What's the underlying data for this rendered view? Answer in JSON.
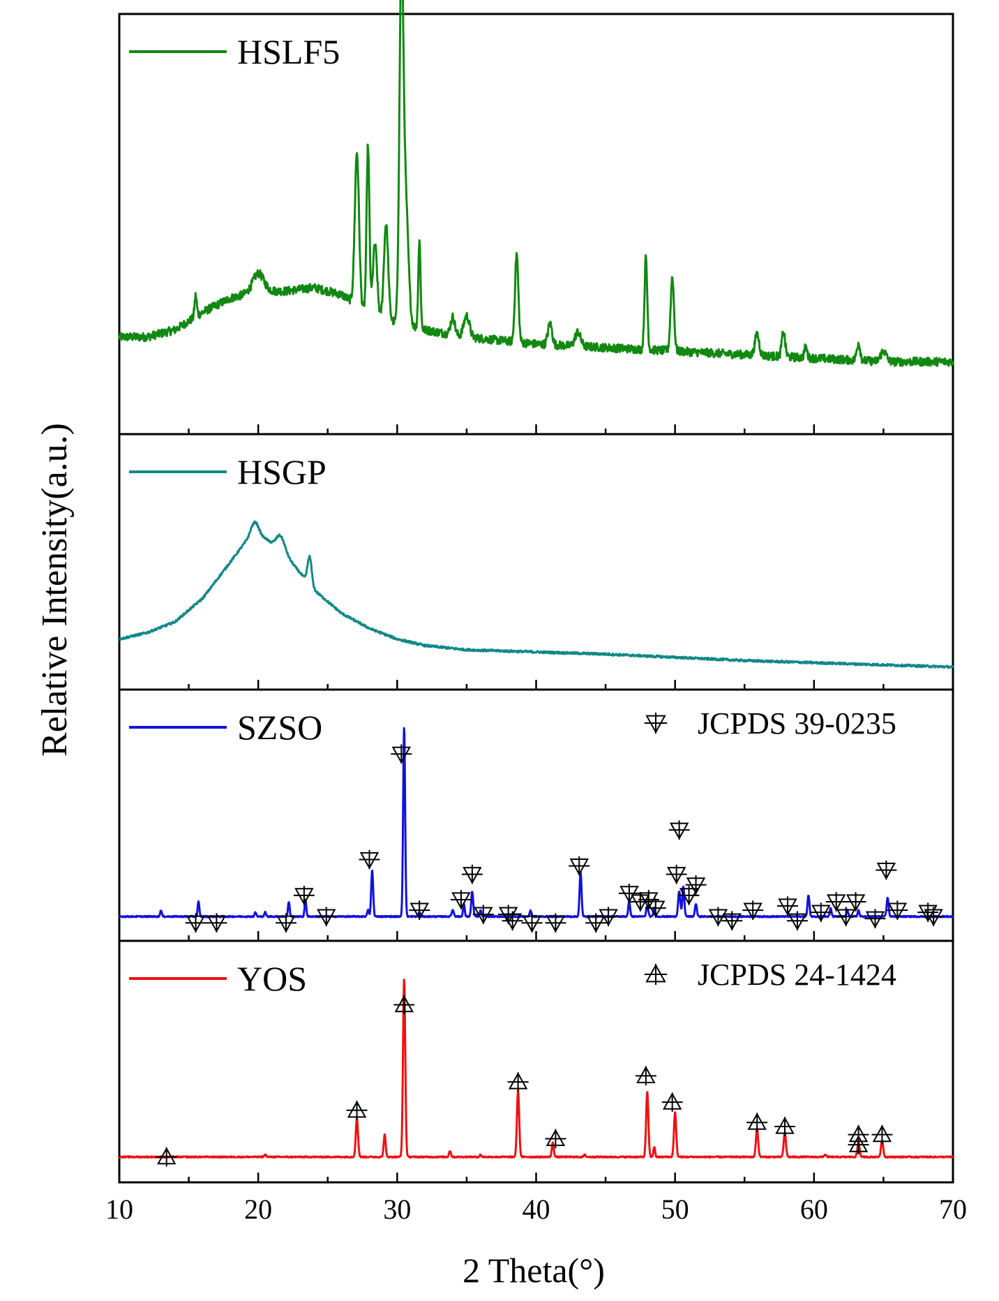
{
  "chart_data": {
    "type": "line",
    "title": "",
    "xlabel": "2 Theta(°)",
    "ylabel": "Relative Intensity(a.u.)",
    "xlim": [
      10,
      70
    ],
    "xticks": [
      10,
      20,
      30,
      40,
      50,
      60,
      70
    ],
    "xtick_labels": [
      "10",
      "20",
      "30",
      "40",
      "50",
      "60",
      "70"
    ],
    "grid": false,
    "panels": [
      {
        "name": "HSLF5",
        "color": "#118811",
        "legend": "HSLF5",
        "ylim": [
          0,
          1
        ],
        "baseline": [
          [
            10,
            0.18
          ],
          [
            12,
            0.18
          ],
          [
            14,
            0.2
          ],
          [
            16,
            0.25
          ],
          [
            18,
            0.29
          ],
          [
            20,
            0.31
          ],
          [
            22,
            0.31
          ],
          [
            24,
            0.32
          ],
          [
            26,
            0.3
          ],
          [
            28,
            0.25
          ],
          [
            30,
            0.22
          ],
          [
            32,
            0.2
          ],
          [
            35,
            0.18
          ],
          [
            40,
            0.16
          ],
          [
            45,
            0.15
          ],
          [
            50,
            0.14
          ],
          [
            55,
            0.13
          ],
          [
            60,
            0.12
          ],
          [
            65,
            0.11
          ],
          [
            70,
            0.11
          ]
        ],
        "peaks": [
          [
            15.5,
            0.06,
            0.08
          ],
          [
            20,
            0.05,
            0.4
          ],
          [
            27.1,
            0.43,
            0.15
          ],
          [
            27.9,
            0.47,
            0.1
          ],
          [
            28.4,
            0.2,
            0.15
          ],
          [
            29.2,
            0.27,
            0.15
          ],
          [
            30.3,
            0.95,
            0.14
          ],
          [
            30.6,
            0.35,
            0.2
          ],
          [
            31.6,
            0.25,
            0.08
          ],
          [
            34,
            0.05,
            0.15
          ],
          [
            35,
            0.06,
            0.2
          ],
          [
            38.6,
            0.25,
            0.12
          ],
          [
            41,
            0.06,
            0.15
          ],
          [
            43,
            0.04,
            0.2
          ],
          [
            47.9,
            0.26,
            0.1
          ],
          [
            49.8,
            0.21,
            0.12
          ],
          [
            55.9,
            0.06,
            0.15
          ],
          [
            57.8,
            0.07,
            0.12
          ],
          [
            59.4,
            0.03,
            0.1
          ],
          [
            63.2,
            0.05,
            0.12
          ],
          [
            65,
            0.03,
            0.2
          ]
        ],
        "noise": 0.012
      },
      {
        "name": "HSGP",
        "color": "#118888",
        "legend": "HSGP",
        "ylim": [
          0,
          1
        ],
        "baseline": [
          [
            10,
            0.14
          ],
          [
            12,
            0.17
          ],
          [
            14,
            0.22
          ],
          [
            16,
            0.33
          ],
          [
            18,
            0.5
          ],
          [
            19.5,
            0.63
          ],
          [
            20.5,
            0.61
          ],
          [
            22,
            0.53
          ],
          [
            24,
            0.37
          ],
          [
            26,
            0.26
          ],
          [
            28,
            0.19
          ],
          [
            30,
            0.14
          ],
          [
            32,
            0.11
          ],
          [
            35,
            0.09
          ],
          [
            40,
            0.08
          ],
          [
            45,
            0.07
          ],
          [
            50,
            0.055
          ],
          [
            55,
            0.04
          ],
          [
            60,
            0.03
          ],
          [
            65,
            0.02
          ],
          [
            70,
            0.01
          ]
        ],
        "peaks": [
          [
            19.8,
            0.06,
            0.25
          ],
          [
            21.6,
            0.07,
            0.3
          ],
          [
            23.7,
            0.13,
            0.15
          ]
        ],
        "noise": 0.005
      },
      {
        "name": "SZSO",
        "color": "#1111dd",
        "legend": "SZSO",
        "reference_label": "JCPDS 39-0235",
        "ylim": [
          0,
          1
        ],
        "baseline": [
          [
            10,
            0.02
          ],
          [
            70,
            0.02
          ]
        ],
        "peaks": [
          [
            13,
            0.03,
            0.06
          ],
          [
            15.7,
            0.07,
            0.06
          ],
          [
            19.8,
            0.02,
            0.06
          ],
          [
            20.5,
            0.02,
            0.06
          ],
          [
            22.2,
            0.07,
            0.06
          ],
          [
            23.4,
            0.08,
            0.06
          ],
          [
            27.9,
            0.03,
            0.06
          ],
          [
            28.2,
            0.22,
            0.07
          ],
          [
            30.5,
            0.9,
            0.07
          ],
          [
            31.6,
            0.02,
            0.06
          ],
          [
            34,
            0.03,
            0.08
          ],
          [
            34.8,
            0.06,
            0.06
          ],
          [
            35.4,
            0.12,
            0.07
          ],
          [
            36,
            0.03,
            0.06
          ],
          [
            39.6,
            0.03,
            0.06
          ],
          [
            43.2,
            0.21,
            0.07
          ],
          [
            46.7,
            0.07,
            0.07
          ],
          [
            48,
            0.05,
            0.07
          ],
          [
            48.5,
            0.04,
            0.06
          ],
          [
            50.3,
            0.12,
            0.08
          ],
          [
            50.6,
            0.14,
            0.07
          ],
          [
            51.5,
            0.06,
            0.07
          ],
          [
            59.6,
            0.1,
            0.07
          ],
          [
            61.2,
            0.04,
            0.06
          ],
          [
            62.4,
            0.03,
            0.06
          ],
          [
            63.2,
            0.03,
            0.06
          ],
          [
            65.3,
            0.09,
            0.07
          ]
        ],
        "reference_markers": [
          [
            15.5,
            -0.01
          ],
          [
            17,
            -0.01
          ],
          [
            22,
            -0.01
          ],
          [
            23.3,
            0.12
          ],
          [
            24.9,
            0.02
          ],
          [
            28,
            0.29
          ],
          [
            30.3,
            0.79
          ],
          [
            31.6,
            0.05
          ],
          [
            34.6,
            0.1
          ],
          [
            35.4,
            0.22
          ],
          [
            36.2,
            0.03
          ],
          [
            38,
            0.03
          ],
          [
            38.3,
            0.0
          ],
          [
            39.7,
            -0.01
          ],
          [
            41.4,
            -0.01
          ],
          [
            43.1,
            0.26
          ],
          [
            44.3,
            -0.01
          ],
          [
            45.2,
            0.02
          ],
          [
            46.7,
            0.13
          ],
          [
            47.5,
            0.09
          ],
          [
            48.1,
            0.1
          ],
          [
            48.6,
            0.06
          ],
          [
            50.1,
            0.22
          ],
          [
            50.3,
            0.43
          ],
          [
            51,
            0.12
          ],
          [
            51.5,
            0.17
          ],
          [
            53.1,
            0.02
          ],
          [
            54.1,
            0.0
          ],
          [
            55.6,
            0.05
          ],
          [
            58.1,
            0.07
          ],
          [
            58.8,
            0.0
          ],
          [
            60.5,
            0.04
          ],
          [
            61.6,
            0.09
          ],
          [
            62.3,
            0.02
          ],
          [
            63,
            0.09
          ],
          [
            64.4,
            0.01
          ],
          [
            65.2,
            0.24
          ],
          [
            66,
            0.05
          ],
          [
            68.2,
            0.04
          ],
          [
            68.6,
            0.02
          ]
        ],
        "noise": 0.003
      },
      {
        "name": "YOS",
        "color": "#ee1111",
        "legend": "YOS",
        "reference_label": "JCPDS 24-1424",
        "ylim": [
          0,
          1
        ],
        "baseline": [
          [
            10,
            0.03
          ],
          [
            70,
            0.03
          ]
        ],
        "peaks": [
          [
            20.5,
            0.01,
            0.08
          ],
          [
            27.1,
            0.19,
            0.08
          ],
          [
            29.1,
            0.11,
            0.07
          ],
          [
            30.5,
            0.88,
            0.08
          ],
          [
            33.8,
            0.03,
            0.07
          ],
          [
            36,
            0.01,
            0.06
          ],
          [
            38.7,
            0.33,
            0.08
          ],
          [
            41.2,
            0.07,
            0.07
          ],
          [
            43.5,
            0.01,
            0.07
          ],
          [
            48,
            0.32,
            0.08
          ],
          [
            48.5,
            0.05,
            0.06
          ],
          [
            50,
            0.22,
            0.08
          ],
          [
            55.9,
            0.14,
            0.08
          ],
          [
            57.9,
            0.12,
            0.08
          ],
          [
            60.8,
            0.01,
            0.08
          ],
          [
            63.2,
            0.07,
            0.08
          ],
          [
            64.9,
            0.08,
            0.08
          ]
        ],
        "reference_markers": [
          [
            13.4,
            0.03
          ],
          [
            27.1,
            0.26
          ],
          [
            30.5,
            0.78
          ],
          [
            38.7,
            0.4
          ],
          [
            41.4,
            0.12
          ],
          [
            47.9,
            0.43
          ],
          [
            49.8,
            0.3
          ],
          [
            55.9,
            0.2
          ],
          [
            57.9,
            0.18
          ],
          [
            63.2,
            0.14
          ],
          [
            63.2,
            0.09
          ],
          [
            64.9,
            0.14
          ]
        ],
        "noise": 0.003
      }
    ]
  }
}
